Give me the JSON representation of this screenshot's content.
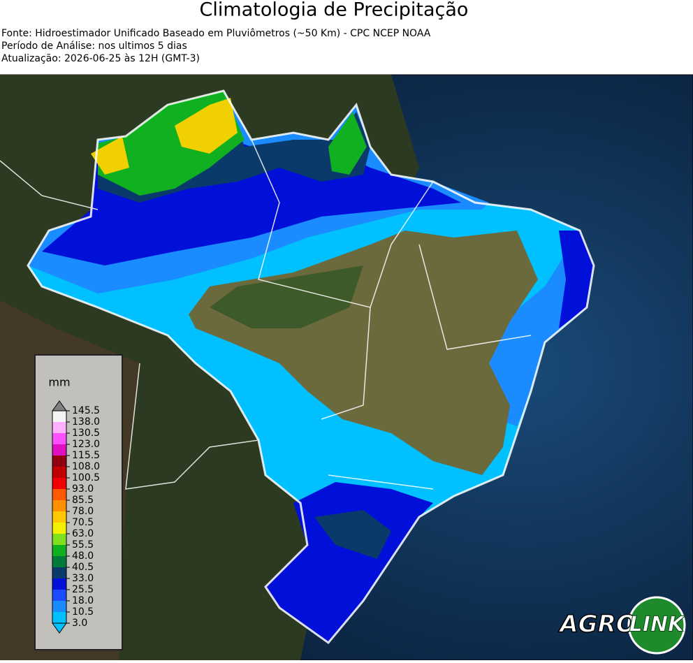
{
  "header": {
    "title": "Climatologia de Precipitação",
    "lines": [
      "Fonte: Hidroestimador Unificado Baseado em Pluviômetros (~50 Km) - CPC NCEP NOAA",
      "Período de Análise: nos ultimos 5 dias",
      "Atualização: 2026-06-25 às 12H (GMT-3)"
    ]
  },
  "legend": {
    "unit": "mm",
    "ticks": [
      {
        "value": 3,
        "label": "3.0"
      },
      {
        "value": 10.5,
        "label": "10.5"
      },
      {
        "value": 18,
        "label": "18.0"
      },
      {
        "value": 25.5,
        "label": "25.5"
      },
      {
        "value": 33,
        "label": "33.0"
      },
      {
        "value": 40.5,
        "label": "40.5"
      },
      {
        "value": 48,
        "label": "48.0"
      },
      {
        "value": 55.5,
        "label": "55.5"
      },
      {
        "value": 63,
        "label": "63.0"
      },
      {
        "value": 70.5,
        "label": "70.5"
      },
      {
        "value": 78,
        "label": "78.0"
      },
      {
        "value": 85.5,
        "label": "85.5"
      },
      {
        "value": 93,
        "label": "93.0"
      },
      {
        "value": 100.5,
        "label": "100.5"
      },
      {
        "value": 108,
        "label": "108.0"
      },
      {
        "value": 115.5,
        "label": "115.5"
      },
      {
        "value": 123,
        "label": "123.0"
      },
      {
        "value": 130.5,
        "label": "130.5"
      },
      {
        "value": 138,
        "label": "138.0"
      },
      {
        "value": 145.5,
        "label": "145.5"
      }
    ],
    "colors": [
      "#00c0ff",
      "#1a8cff",
      "#1c4cff",
      "#0010d8",
      "#0a3a6a",
      "#007a3a",
      "#10b020",
      "#80e020",
      "#f0f000",
      "#ffc800",
      "#ff9000",
      "#ff5a00",
      "#f00000",
      "#c00000",
      "#900010",
      "#e010c0",
      "#ff50ff",
      "#ffb0ff",
      "#f4f4f4"
    ],
    "under_color": "#00c0ff",
    "over_color": "#808080"
  },
  "logo": {
    "left": "AGRO",
    "right": "LINK"
  }
}
